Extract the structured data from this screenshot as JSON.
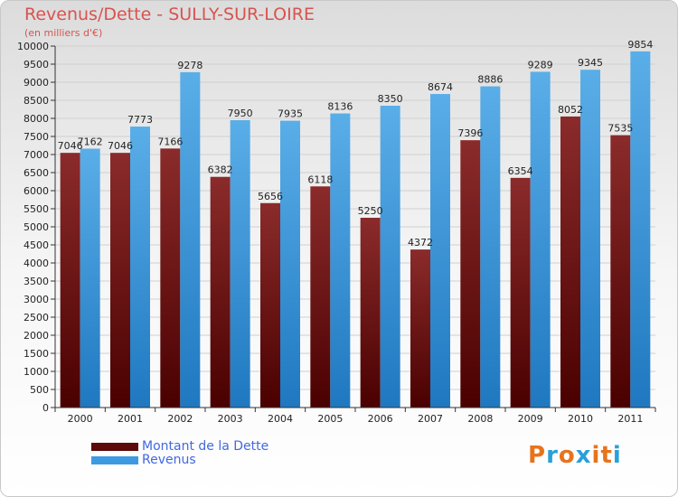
{
  "header": {
    "title": "Revenus/Dette - SULLY-SUR-LOIRE",
    "subtitle": "(en milliers d'€)"
  },
  "colors": {
    "dette_top": "#8b2b2b",
    "dette_bottom": "#4a0000",
    "revenus_top": "#5aaee8",
    "revenus_bottom": "#1f78c0",
    "grid": "#d0d0d0"
  },
  "legend": {
    "items": [
      {
        "label": "Montant de la Dette",
        "color": "#5c0a0a"
      },
      {
        "label": "Revenus",
        "color": "#3d9ae0"
      }
    ]
  },
  "logo": {
    "text": "Proxiti",
    "colors": [
      "#e8731c",
      "#2aa0d8",
      "#e8731c",
      "#2aa0d8",
      "#e8731c",
      "#e8731c",
      "#2aa0d8"
    ]
  },
  "chart_data": {
    "type": "bar",
    "title": "Revenus/Dette - SULLY-SUR-LOIRE",
    "subtitle": "(en milliers d'€)",
    "categories": [
      "2000",
      "2001",
      "2002",
      "2003",
      "2004",
      "2005",
      "2006",
      "2007",
      "2008",
      "2009",
      "2010",
      "2011"
    ],
    "series": [
      {
        "name": "Montant de la Dette",
        "values": [
          7046,
          7046,
          7166,
          6382,
          5656,
          6118,
          5250,
          4372,
          7396,
          6354,
          8052,
          7535
        ]
      },
      {
        "name": "Revenus",
        "values": [
          7162,
          7773,
          9278,
          7950,
          7935,
          8136,
          8350,
          8674,
          8886,
          9289,
          9345,
          9854
        ]
      }
    ],
    "ylim": [
      0,
      10000
    ],
    "ytick_step": 500,
    "grid": true,
    "legend_position": "bottom-left"
  }
}
